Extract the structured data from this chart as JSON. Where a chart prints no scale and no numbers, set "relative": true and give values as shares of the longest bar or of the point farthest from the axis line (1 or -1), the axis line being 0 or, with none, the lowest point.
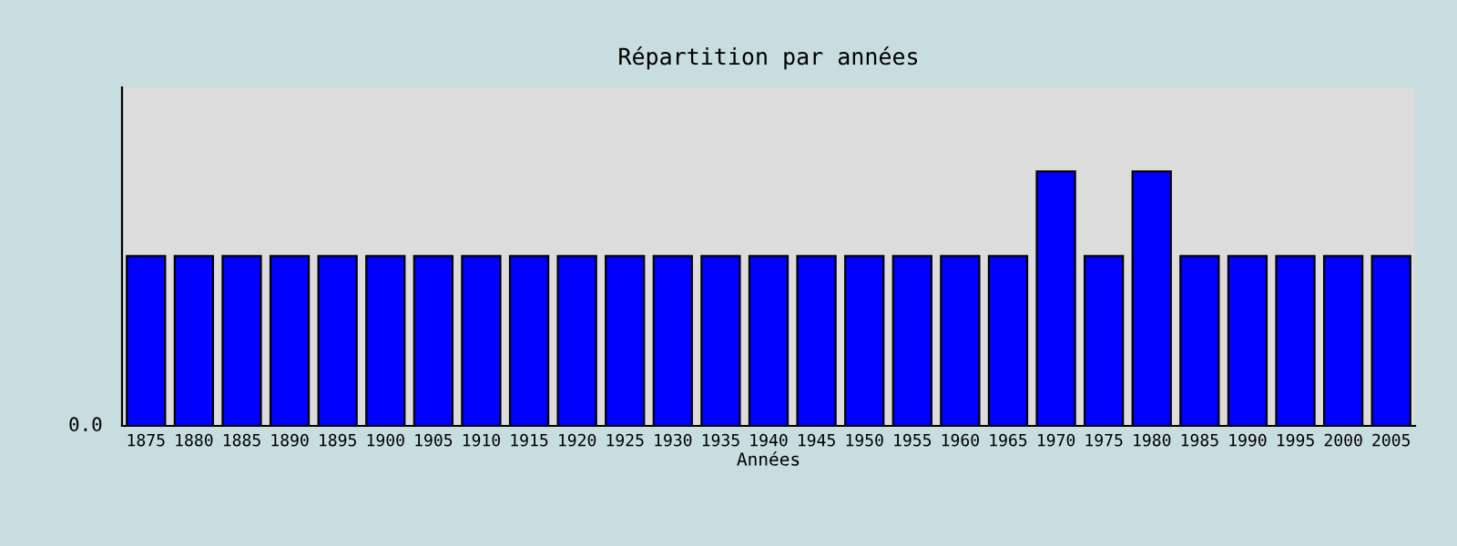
{
  "chart_data": {
    "type": "bar",
    "title": "Répartition par années",
    "xlabel": "Années",
    "relative": true,
    "categories": [
      "1875",
      "1880",
      "1885",
      "1890",
      "1895",
      "1900",
      "1905",
      "1910",
      "1915",
      "1920",
      "1925",
      "1930",
      "1935",
      "1940",
      "1945",
      "1950",
      "1955",
      "1960",
      "1965",
      "1970",
      "1975",
      "1980",
      "1985",
      "1990",
      "1995",
      "2000",
      "2005"
    ],
    "values": [
      0.667,
      0.667,
      0.667,
      0.667,
      0.667,
      0.667,
      0.667,
      0.667,
      0.667,
      0.667,
      0.667,
      0.667,
      0.667,
      0.667,
      0.667,
      0.667,
      0.667,
      0.667,
      0.667,
      1,
      0.667,
      1,
      0.667,
      0.667,
      0.667,
      0.667,
      0.667
    ],
    "color": "#0000ff",
    "annotations": [
      "0.0"
    ],
    "grid": false,
    "legend": false
  }
}
